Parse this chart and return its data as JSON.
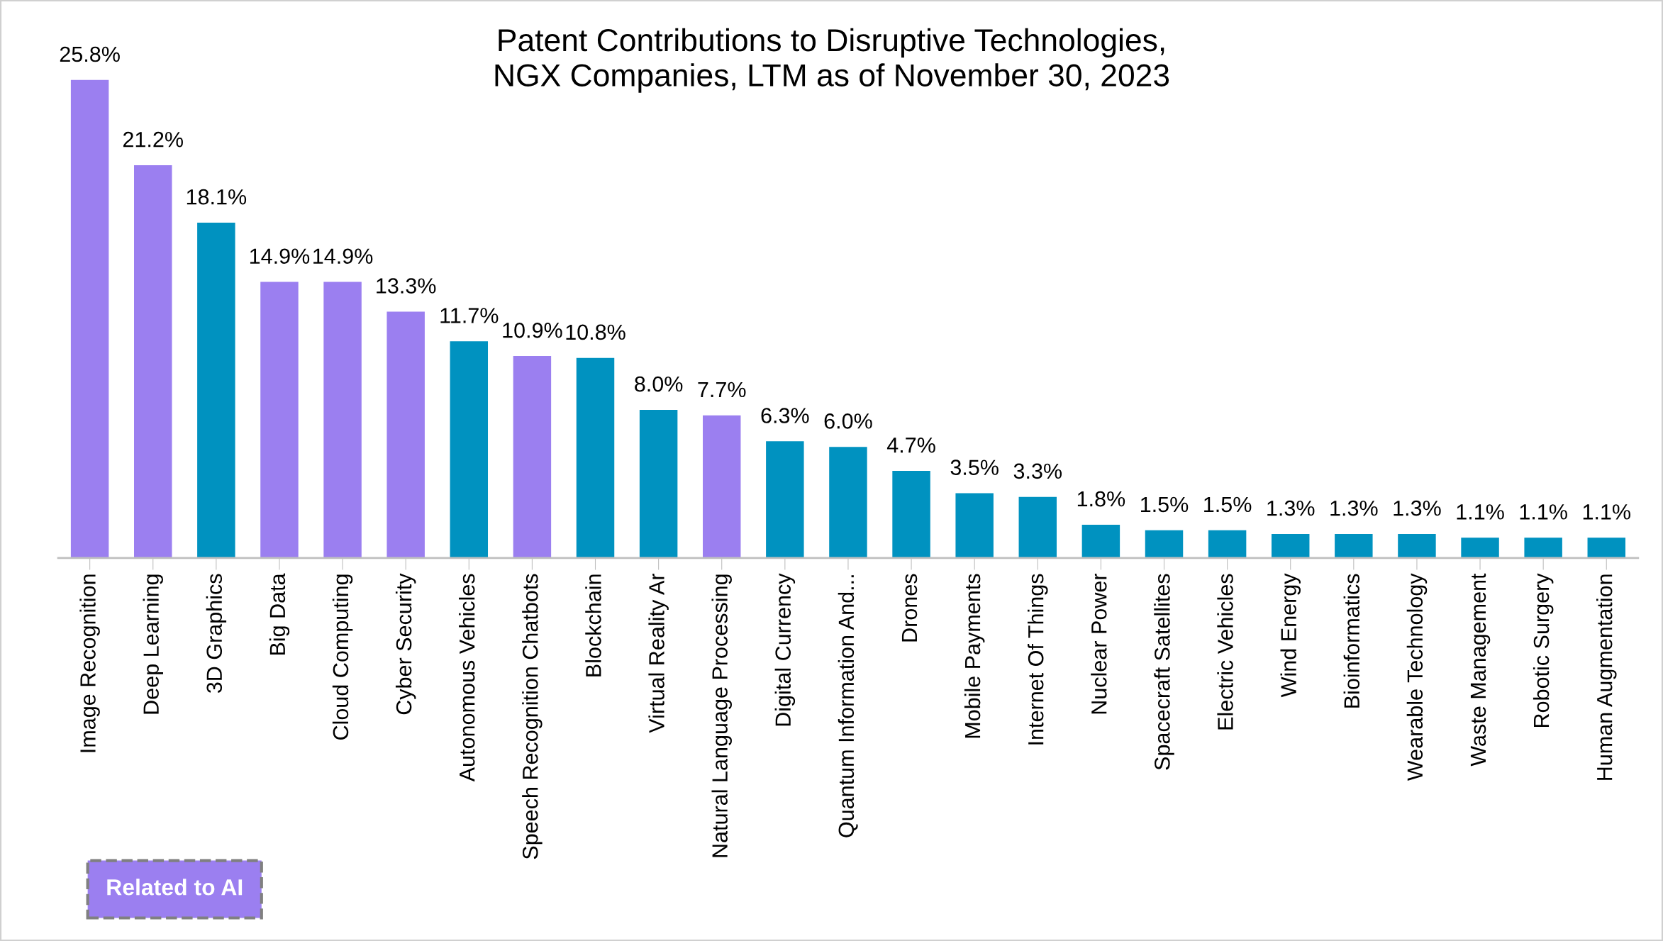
{
  "chart_data": {
    "type": "bar",
    "title": "Patent Contributions to Disruptive Technologies,\nNGX Companies, LTM as of November 30, 2023",
    "categories": [
      "Image Recognition",
      "Deep Learning",
      "3D Graphics",
      "Big Data",
      "Cloud Computing",
      "Cyber Security",
      "Autonomous Vehicles",
      "Speech Recognition Chatbots",
      "Blockchain",
      "Virtual Reality Ar",
      "Natural Language Processing",
      "Digital Currency",
      "Quantum Information And...",
      "Drones",
      "Mobile Payments",
      "Internet Of Things",
      "Nuclear Power",
      "Spacecraft Satellites",
      "Electric Vehicles",
      "Wind Energy",
      "Bioinformatics",
      "Wearable Technology",
      "Waste Management",
      "Robotic Surgery",
      "Human Augmentation"
    ],
    "series": [
      {
        "name": "Related to AI",
        "color": "#9b7ff0",
        "values": [
          25.8,
          21.2,
          null,
          14.9,
          14.9,
          13.3,
          null,
          10.9,
          null,
          null,
          7.7,
          null,
          null,
          null,
          null,
          null,
          null,
          null,
          null,
          null,
          null,
          null,
          null,
          null,
          null
        ],
        "value_labels": [
          "25.8%",
          "21.2%",
          null,
          "14.9%",
          "14.9%",
          "13.3%",
          null,
          "10.9%",
          null,
          null,
          "7.7%",
          null,
          null,
          null,
          null,
          null,
          null,
          null,
          null,
          null,
          null,
          null,
          null,
          null,
          null
        ]
      },
      {
        "color": "#0092c0",
        "values": [
          null,
          null,
          18.1,
          null,
          null,
          null,
          11.7,
          null,
          10.8,
          8.0,
          null,
          6.3,
          6.0,
          4.7,
          3.5,
          3.3,
          1.8,
          1.5,
          1.5,
          1.3,
          1.3,
          1.3,
          1.1,
          1.1,
          1.1
        ],
        "value_labels": [
          null,
          null,
          "18.1%",
          null,
          null,
          null,
          "11.7%",
          null,
          "10.8%",
          "8.0%",
          null,
          "6.3%",
          "6.0%",
          "4.7%",
          "3.5%",
          "3.3%",
          "1.8%",
          "1.5%",
          "1.5%",
          "1.3%",
          "1.3%",
          "1.3%",
          "1.1%",
          "1.1%",
          "1.1%"
        ]
      }
    ],
    "legend": "bottom left",
    "grid": false
  }
}
